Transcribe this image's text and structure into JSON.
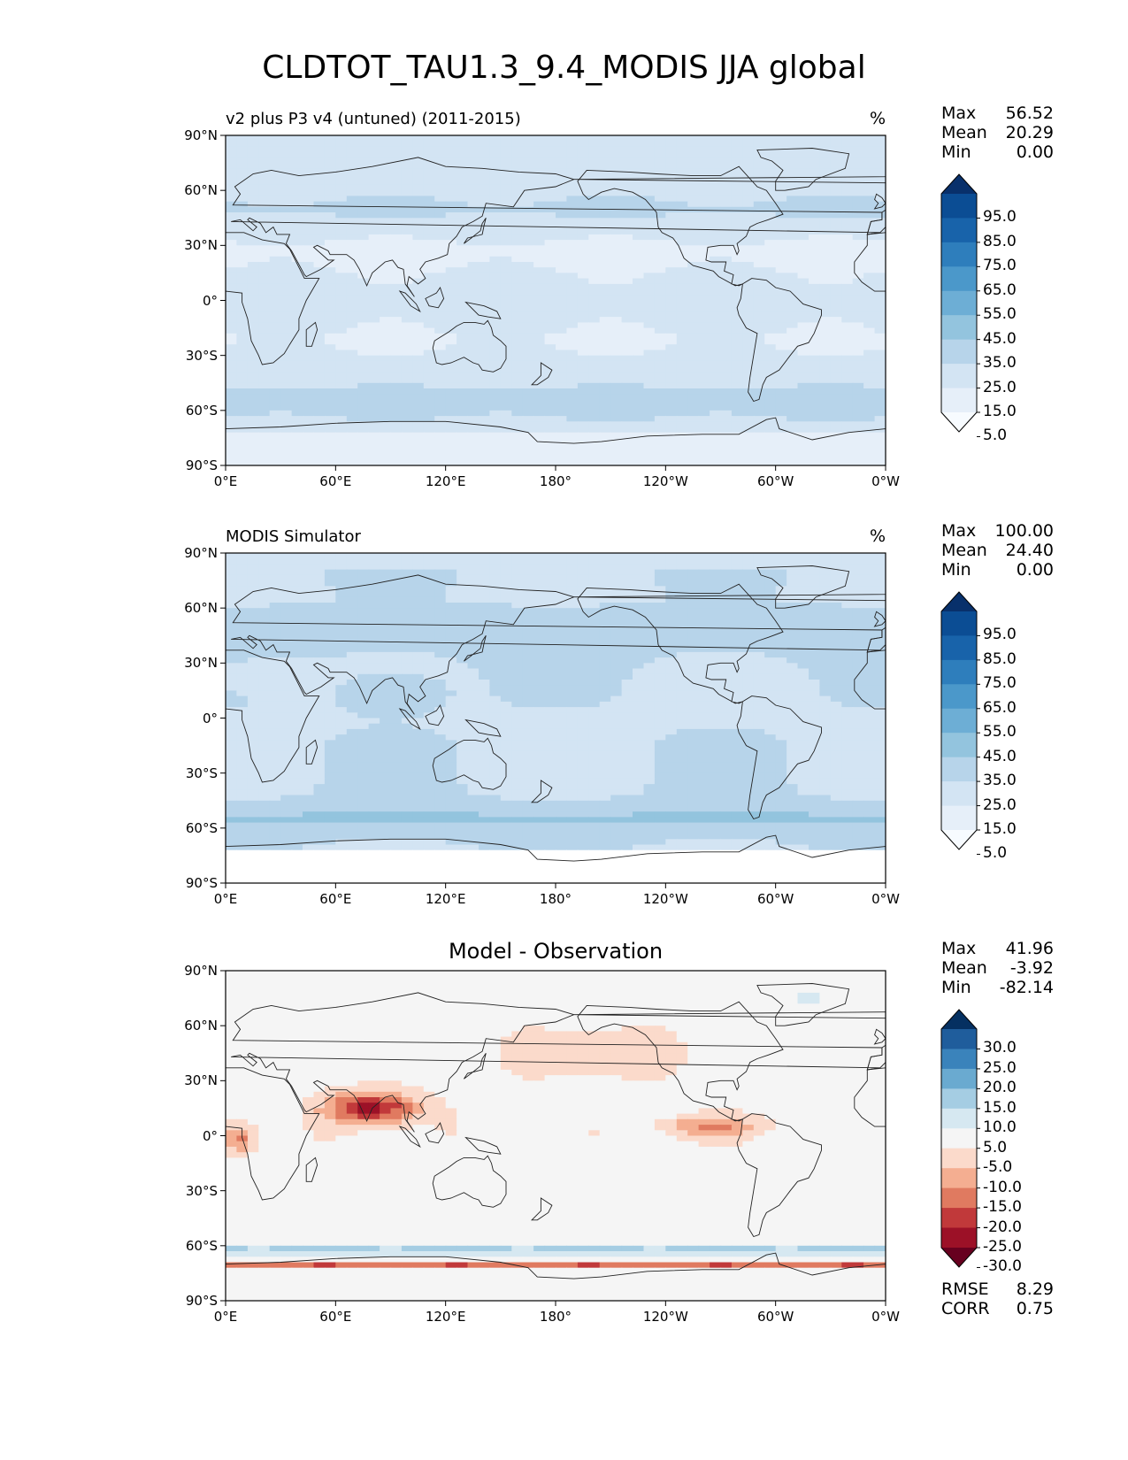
{
  "figure_title": "CLDTOT_TAU1.3_9.4_MODIS JJA global",
  "panels": [
    {
      "title_left": "v2 plus P3 v4 (untuned) (2011-2015)",
      "title_center": "",
      "units": "%",
      "stats": {
        "max_label": "Max",
        "max": "56.52",
        "mean_label": "Mean",
        "mean": "20.29",
        "min_label": "Min",
        "min": "0.00"
      },
      "colorbar": {
        "labels": [
          "95.0",
          "85.0",
          "75.0",
          "65.0",
          "55.0",
          "45.0",
          "35.0",
          "25.0",
          "15.0",
          "5.0"
        ],
        "colors": [
          "#08306b",
          "#0b4d94",
          "#1863aa",
          "#2e7ebc",
          "#4b98ca",
          "#6daed5",
          "#93c4de",
          "#b7d4ea",
          "#d3e4f3",
          "#e6eff9",
          "#f7fbff"
        ]
      }
    },
    {
      "title_left": "MODIS Simulator",
      "title_center": "",
      "units": "%",
      "stats": {
        "max_label": "Max",
        "max": "100.00",
        "mean_label": "Mean",
        "mean": "24.40",
        "min_label": "Min",
        "min": "0.00"
      },
      "colorbar": {
        "labels": [
          "95.0",
          "85.0",
          "75.0",
          "65.0",
          "55.0",
          "45.0",
          "35.0",
          "25.0",
          "15.0",
          "5.0"
        ],
        "colors": [
          "#08306b",
          "#0b4d94",
          "#1863aa",
          "#2e7ebc",
          "#4b98ca",
          "#6daed5",
          "#93c4de",
          "#b7d4ea",
          "#d3e4f3",
          "#e6eff9",
          "#f7fbff"
        ]
      }
    },
    {
      "title_left": "",
      "title_center": "Model - Observation",
      "units": "",
      "stats": {
        "max_label": "Max",
        "max": "41.96",
        "mean_label": "Mean",
        "mean": "-3.92",
        "min_label": "Min",
        "min": "-82.14"
      },
      "colorbar": {
        "labels": [
          "30.0",
          "25.0",
          "20.0",
          "15.0",
          "10.0",
          "5.0",
          "-5.0",
          "-10.0",
          "-15.0",
          "-20.0",
          "-25.0",
          "-30.0"
        ],
        "colors": [
          "#053061",
          "#1f5d9c",
          "#3a83bb",
          "#6aaad0",
          "#a5cde3",
          "#d6e8f1",
          "#f5f5f5",
          "#fbdacb",
          "#f4ae91",
          "#e07a60",
          "#c1393a",
          "#9c1127",
          "#67001f"
        ]
      },
      "rmse_label": "RMSE",
      "rmse": "8.29",
      "corr_label": "CORR",
      "corr": "0.75"
    }
  ],
  "axes": {
    "x_ticks": [
      "0°E",
      "60°E",
      "120°E",
      "180°",
      "120°W",
      "60°W",
      "0°W"
    ],
    "y_ticks": [
      "90°N",
      "60°N",
      "30°N",
      "0°",
      "30°S",
      "60°S",
      "90°S"
    ]
  },
  "chart_data": [
    {
      "type": "heatmap",
      "title": "v2 plus P3 v4 (untuned) (2011-2015)",
      "units": "%",
      "xlim": [
        0,
        360
      ],
      "ylim": [
        -90,
        90
      ],
      "x_tick_values": [
        0,
        60,
        120,
        180,
        240,
        300,
        360
      ],
      "y_tick_values": [
        90,
        60,
        30,
        0,
        -30,
        -60,
        -90
      ],
      "levels": [
        5,
        15,
        25,
        35,
        45,
        55,
        65,
        75,
        85,
        95
      ],
      "stats": {
        "max": 56.52,
        "mean": 20.29,
        "min": 0.0
      },
      "zonal_mean_estimate": {
        "lat": [
          80,
          60,
          45,
          30,
          15,
          0,
          -15,
          -30,
          -45,
          -55,
          -65,
          -80
        ],
        "value": [
          18,
          22,
          24,
          16,
          14,
          18,
          12,
          20,
          30,
          35,
          25,
          8
        ]
      }
    },
    {
      "type": "heatmap",
      "title": "MODIS Simulator",
      "units": "%",
      "xlim": [
        0,
        360
      ],
      "ylim": [
        -90,
        90
      ],
      "x_tick_values": [
        0,
        60,
        120,
        180,
        240,
        300,
        360
      ],
      "y_tick_values": [
        90,
        60,
        30,
        0,
        -30,
        -60,
        -90
      ],
      "levels": [
        5,
        15,
        25,
        35,
        45,
        55,
        65,
        75,
        85,
        95
      ],
      "stats": {
        "max": 100.0,
        "mean": 24.4,
        "min": 0.0
      },
      "zonal_mean_estimate": {
        "lat": [
          80,
          60,
          45,
          30,
          15,
          0,
          -15,
          -30,
          -45,
          -55,
          -65,
          -80
        ],
        "value": [
          22,
          26,
          30,
          22,
          28,
          24,
          18,
          26,
          34,
          38,
          30,
          0
        ]
      }
    },
    {
      "type": "heatmap",
      "title": "Model - Observation",
      "xlim": [
        0,
        360
      ],
      "ylim": [
        -90,
        90
      ],
      "x_tick_values": [
        0,
        60,
        120,
        180,
        240,
        300,
        360
      ],
      "y_tick_values": [
        90,
        60,
        30,
        0,
        -30,
        -60,
        -90
      ],
      "levels": [
        -30,
        -25,
        -20,
        -15,
        -10,
        -5,
        5,
        10,
        15,
        20,
        25,
        30
      ],
      "stats": {
        "max": 41.96,
        "mean": -3.92,
        "min": -82.14,
        "rmse": 8.29,
        "corr": 0.75
      },
      "zonal_mean_estimate": {
        "lat": [
          80,
          60,
          45,
          30,
          15,
          0,
          -15,
          -30,
          -45,
          -55,
          -65,
          -72
        ],
        "value": [
          -4,
          -3,
          -6,
          -6,
          -12,
          -8,
          -5,
          -2,
          -3,
          4,
          8,
          -15
        ]
      }
    }
  ]
}
